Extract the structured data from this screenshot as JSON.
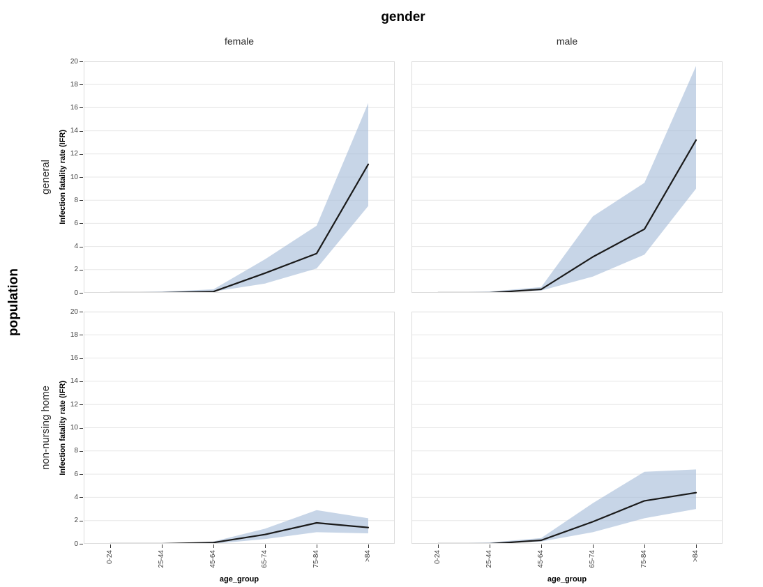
{
  "title": "gender",
  "facet_row_title": "population",
  "col_strips": {
    "female": "female",
    "male": "male"
  },
  "row_strips": {
    "general": "general",
    "non_nursing": "non-nursing home"
  },
  "y_axis_title": "Infection fatality rate (IFR)",
  "x_axis_title": "age_group",
  "y_tick_labels": [
    "0",
    "2",
    "4",
    "6",
    "8",
    "10",
    "12",
    "14",
    "16",
    "18",
    "20"
  ],
  "colors": {
    "ribbon": "rgba(164,188,216,0.62)",
    "line": "#1a1a1a",
    "grid": "#e7e7e7",
    "panel_border": "#dcdcdc",
    "tick": "#333333",
    "background": "#ffffff"
  },
  "chart_data": {
    "type": "line",
    "title": "gender",
    "facet_col_variable": "gender",
    "facet_row_variable": "population",
    "xlabel": "age_group",
    "ylabel": "Infection fatality rate (IFR)",
    "ylim": [
      0,
      20
    ],
    "y_tick_step": 2,
    "grid": "horizontal-only",
    "legend": "none",
    "categories": [
      "0-24",
      "25-44",
      "45-64",
      "65-74",
      "75-84",
      ">84"
    ],
    "series_style": "black mean line with light blue confidence ribbon",
    "panels": [
      {
        "population": "general",
        "gender": "female",
        "ifr_mean": [
          0.0,
          0.0,
          0.1,
          1.7,
          3.4,
          11.1
        ],
        "ci_lower": [
          0.0,
          0.0,
          0.1,
          0.8,
          2.1,
          7.5
        ],
        "ci_upper": [
          0.0,
          0.1,
          0.3,
          2.9,
          5.8,
          16.4
        ]
      },
      {
        "population": "general",
        "gender": "male",
        "ifr_mean": [
          0.0,
          0.0,
          0.3,
          3.1,
          5.5,
          13.2
        ],
        "ci_lower": [
          0.0,
          0.0,
          0.2,
          1.4,
          3.3,
          9.0
        ],
        "ci_upper": [
          0.0,
          0.1,
          0.5,
          6.6,
          9.5,
          19.6
        ]
      },
      {
        "population": "non-nursing home",
        "gender": "female",
        "ifr_mean": [
          0.0,
          0.0,
          0.1,
          0.8,
          1.8,
          1.4
        ],
        "ci_lower": [
          0.0,
          0.0,
          0.0,
          0.4,
          1.0,
          0.9
        ],
        "ci_upper": [
          0.0,
          0.0,
          0.2,
          1.3,
          2.9,
          2.2
        ]
      },
      {
        "population": "non-nursing home",
        "gender": "male",
        "ifr_mean": [
          0.0,
          0.0,
          0.3,
          1.9,
          3.7,
          4.4
        ],
        "ci_lower": [
          0.0,
          0.0,
          0.2,
          1.0,
          2.2,
          3.0
        ],
        "ci_upper": [
          0.0,
          0.1,
          0.5,
          3.5,
          6.2,
          6.4
        ]
      }
    ]
  }
}
